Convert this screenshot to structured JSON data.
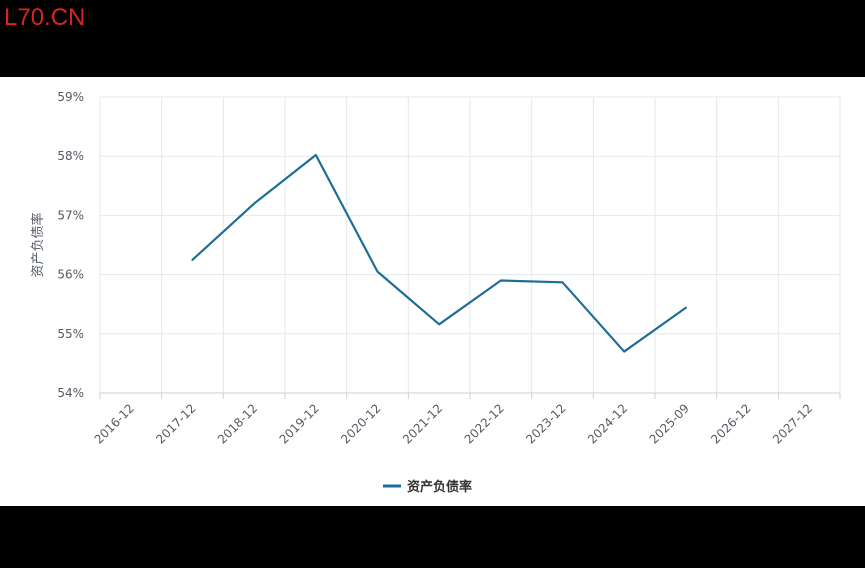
{
  "watermark": "L70.CN",
  "chart_data": {
    "type": "line",
    "title": "",
    "xlabel": "",
    "ylabel": "资产负债率",
    "categories": [
      "2016-12",
      "2017-12",
      "2018-12",
      "2019-12",
      "2020-12",
      "2021-12",
      "2022-12",
      "2023-12",
      "2024-12",
      "2025-09",
      "2026-12",
      "2027-12"
    ],
    "y_ticks": [
      "54%",
      "55%",
      "56%",
      "57%",
      "58%",
      "59%"
    ],
    "ylim": [
      54,
      59
    ],
    "grid": true,
    "legend_position": "bottom-center",
    "series": [
      {
        "name": "资产负债率",
        "color": "#1f6e96",
        "values": [
          null,
          56.25,
          57.2,
          58.02,
          56.05,
          55.16,
          55.9,
          55.87,
          54.7,
          55.44,
          null,
          null
        ]
      }
    ]
  }
}
